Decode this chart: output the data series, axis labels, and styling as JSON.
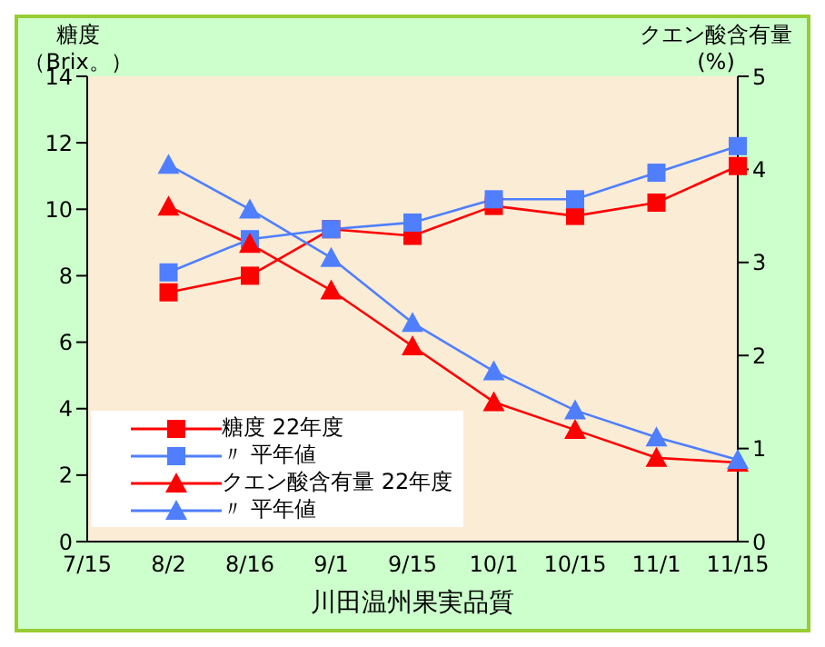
{
  "chart_data": {
    "type": "line",
    "xlabel": "川田温州果実品質",
    "ylabel": "糖度（Brix。）",
    "y2label": "クエン酸含有量(%)",
    "categories": [
      "7/15",
      "8/2",
      "8/16",
      "9/1",
      "9/15",
      "10/1",
      "10/15",
      "11/1",
      "11/15"
    ],
    "series": [
      {
        "name": "糖度 22年度",
        "color": "#ff0000",
        "marker": "square",
        "values": [
          null,
          7.5,
          8.0,
          9.4,
          9.2,
          10.1,
          9.8,
          10.2,
          11.3
        ]
      },
      {
        "name": "〃 平年値",
        "color": "#4f7fff",
        "marker": "square",
        "values": [
          null,
          8.1,
          9.1,
          9.4,
          9.6,
          10.3,
          10.3,
          11.1,
          11.9
        ]
      },
      {
        "name": "クエン酸含有量 22年度",
        "color": "#ff0000",
        "marker": "triangle",
        "axis": "y2",
        "values": [
          null,
          3.6,
          3.2,
          2.7,
          2.1,
          1.5,
          1.2,
          0.9,
          0.85
        ]
      },
      {
        "name": "〃 平年値",
        "color": "#4f7fff",
        "marker": "triangle",
        "axis": "y2",
        "values": [
          null,
          4.05,
          3.57,
          3.05,
          2.35,
          1.83,
          1.41,
          1.12,
          0.88
        ]
      }
    ],
    "ylim": [
      0,
      14
    ],
    "yticks": [
      0,
      2,
      4,
      6,
      8,
      10,
      12,
      14
    ],
    "y2lim": [
      0,
      5
    ],
    "y2ticks": [
      0,
      1,
      2,
      3,
      4,
      5
    ],
    "grid": false,
    "legend": "bottom left"
  }
}
